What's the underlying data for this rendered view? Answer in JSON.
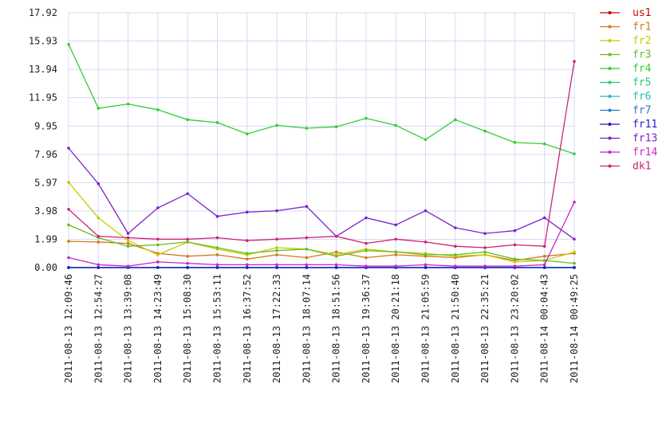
{
  "chart_data": {
    "type": "line",
    "title": "",
    "xlabel": "",
    "ylabel": "",
    "ylim": [
      0,
      17.92
    ],
    "y_ticks": [
      "0.00",
      "1.99",
      "3.98",
      "5.97",
      "7.96",
      "9.95",
      "11.95",
      "13.94",
      "15.93",
      "17.92"
    ],
    "x_ticks": [
      "2011-08-13 12:09:46",
      "2011-08-13 12:54:27",
      "2011-08-13 13:39:08",
      "2011-08-13 14:23:49",
      "2011-08-13 15:08:30",
      "2011-08-13 15:53:11",
      "2011-08-13 16:37:52",
      "2011-08-13 17:22:33",
      "2011-08-13 18:07:14",
      "2011-08-13 18:51:56",
      "2011-08-13 19:36:37",
      "2011-08-13 20:21:18",
      "2011-08-13 21:05:59",
      "2011-08-13 21:50:40",
      "2011-08-13 22:35:21",
      "2011-08-13 23:20:02",
      "2011-08-14 00:04:43",
      "2011-08-14 00:49:25"
    ],
    "grid": true,
    "legend_position": "right",
    "series": [
      {
        "name": "us1",
        "color": "#cc0000",
        "values": [
          0.02,
          0.02,
          0.02,
          0.02,
          0.02,
          0.02,
          0.02,
          0.02,
          0.02,
          0.02,
          0.02,
          0.02,
          0.02,
          0.02,
          0.02,
          0.02,
          0.02,
          0.02
        ]
      },
      {
        "name": "fr1",
        "color": "#cc7a1a",
        "values": [
          1.85,
          1.8,
          1.7,
          1.0,
          0.8,
          0.9,
          0.6,
          0.9,
          0.7,
          1.1,
          0.7,
          0.9,
          0.8,
          0.7,
          0.9,
          0.5,
          0.8,
          1.0
        ]
      },
      {
        "name": "fr2",
        "color": "#c8c800",
        "values": [
          6.0,
          3.5,
          1.9,
          0.9,
          1.8,
          1.3,
          0.9,
          1.4,
          1.3,
          0.9,
          1.3,
          1.1,
          1.0,
          0.8,
          0.9,
          0.4,
          0.5,
          1.1
        ]
      },
      {
        "name": "fr3",
        "color": "#66bb22",
        "values": [
          3.0,
          2.1,
          1.5,
          1.6,
          1.8,
          1.4,
          1.0,
          1.2,
          1.3,
          0.8,
          1.2,
          1.1,
          0.9,
          0.9,
          1.1,
          0.6,
          0.5,
          0.3
        ]
      },
      {
        "name": "fr4",
        "color": "#33cc33",
        "values": [
          15.7,
          11.2,
          11.5,
          11.1,
          10.4,
          10.2,
          9.4,
          10.0,
          9.8,
          9.9,
          10.5,
          10.0,
          9.0,
          10.4,
          9.6,
          8.8,
          8.7,
          8.0
        ]
      },
      {
        "name": "fr5",
        "color": "#22cc77",
        "values": [
          0.01,
          0.01,
          0.01,
          0.01,
          0.01,
          0.01,
          0.01,
          0.01,
          0.01,
          0.01,
          0.01,
          0.01,
          0.01,
          0.01,
          0.01,
          0.01,
          0.01,
          0.01
        ]
      },
      {
        "name": "fr6",
        "color": "#22bbbb",
        "values": [
          0.01,
          0.01,
          0.01,
          0.01,
          0.01,
          0.01,
          0.01,
          0.01,
          0.01,
          0.01,
          0.01,
          0.01,
          0.01,
          0.01,
          0.01,
          0.01,
          0.01,
          0.01
        ]
      },
      {
        "name": "fr7",
        "color": "#2277cc",
        "values": [
          0.0,
          0.0,
          0.0,
          0.0,
          0.0,
          0.0,
          0.0,
          0.0,
          0.0,
          0.0,
          0.0,
          0.0,
          0.0,
          0.0,
          0.0,
          0.0,
          0.0,
          0.0
        ]
      },
      {
        "name": "fr11",
        "color": "#1a1acc",
        "values": [
          0.0,
          0.0,
          0.0,
          0.0,
          0.0,
          0.0,
          0.0,
          0.0,
          0.0,
          0.0,
          0.0,
          0.0,
          0.0,
          0.0,
          0.0,
          0.0,
          0.0,
          0.0
        ]
      },
      {
        "name": "fr13",
        "color": "#7a22cc",
        "values": [
          8.4,
          5.9,
          2.4,
          4.2,
          5.2,
          3.6,
          3.9,
          4.0,
          4.3,
          2.2,
          3.5,
          3.0,
          4.0,
          2.8,
          2.4,
          2.6,
          3.5,
          2.0
        ]
      },
      {
        "name": "fr14",
        "color": "#cc22cc",
        "values": [
          0.7,
          0.2,
          0.1,
          0.4,
          0.3,
          0.2,
          0.2,
          0.2,
          0.2,
          0.2,
          0.1,
          0.1,
          0.2,
          0.1,
          0.1,
          0.1,
          0.2,
          4.6
        ]
      },
      {
        "name": "dk1",
        "color": "#cc2277",
        "values": [
          4.1,
          2.2,
          2.1,
          2.0,
          2.0,
          2.1,
          1.9,
          2.0,
          2.1,
          2.2,
          1.7,
          2.0,
          1.8,
          1.5,
          1.4,
          1.6,
          1.5,
          14.5
        ]
      }
    ]
  }
}
